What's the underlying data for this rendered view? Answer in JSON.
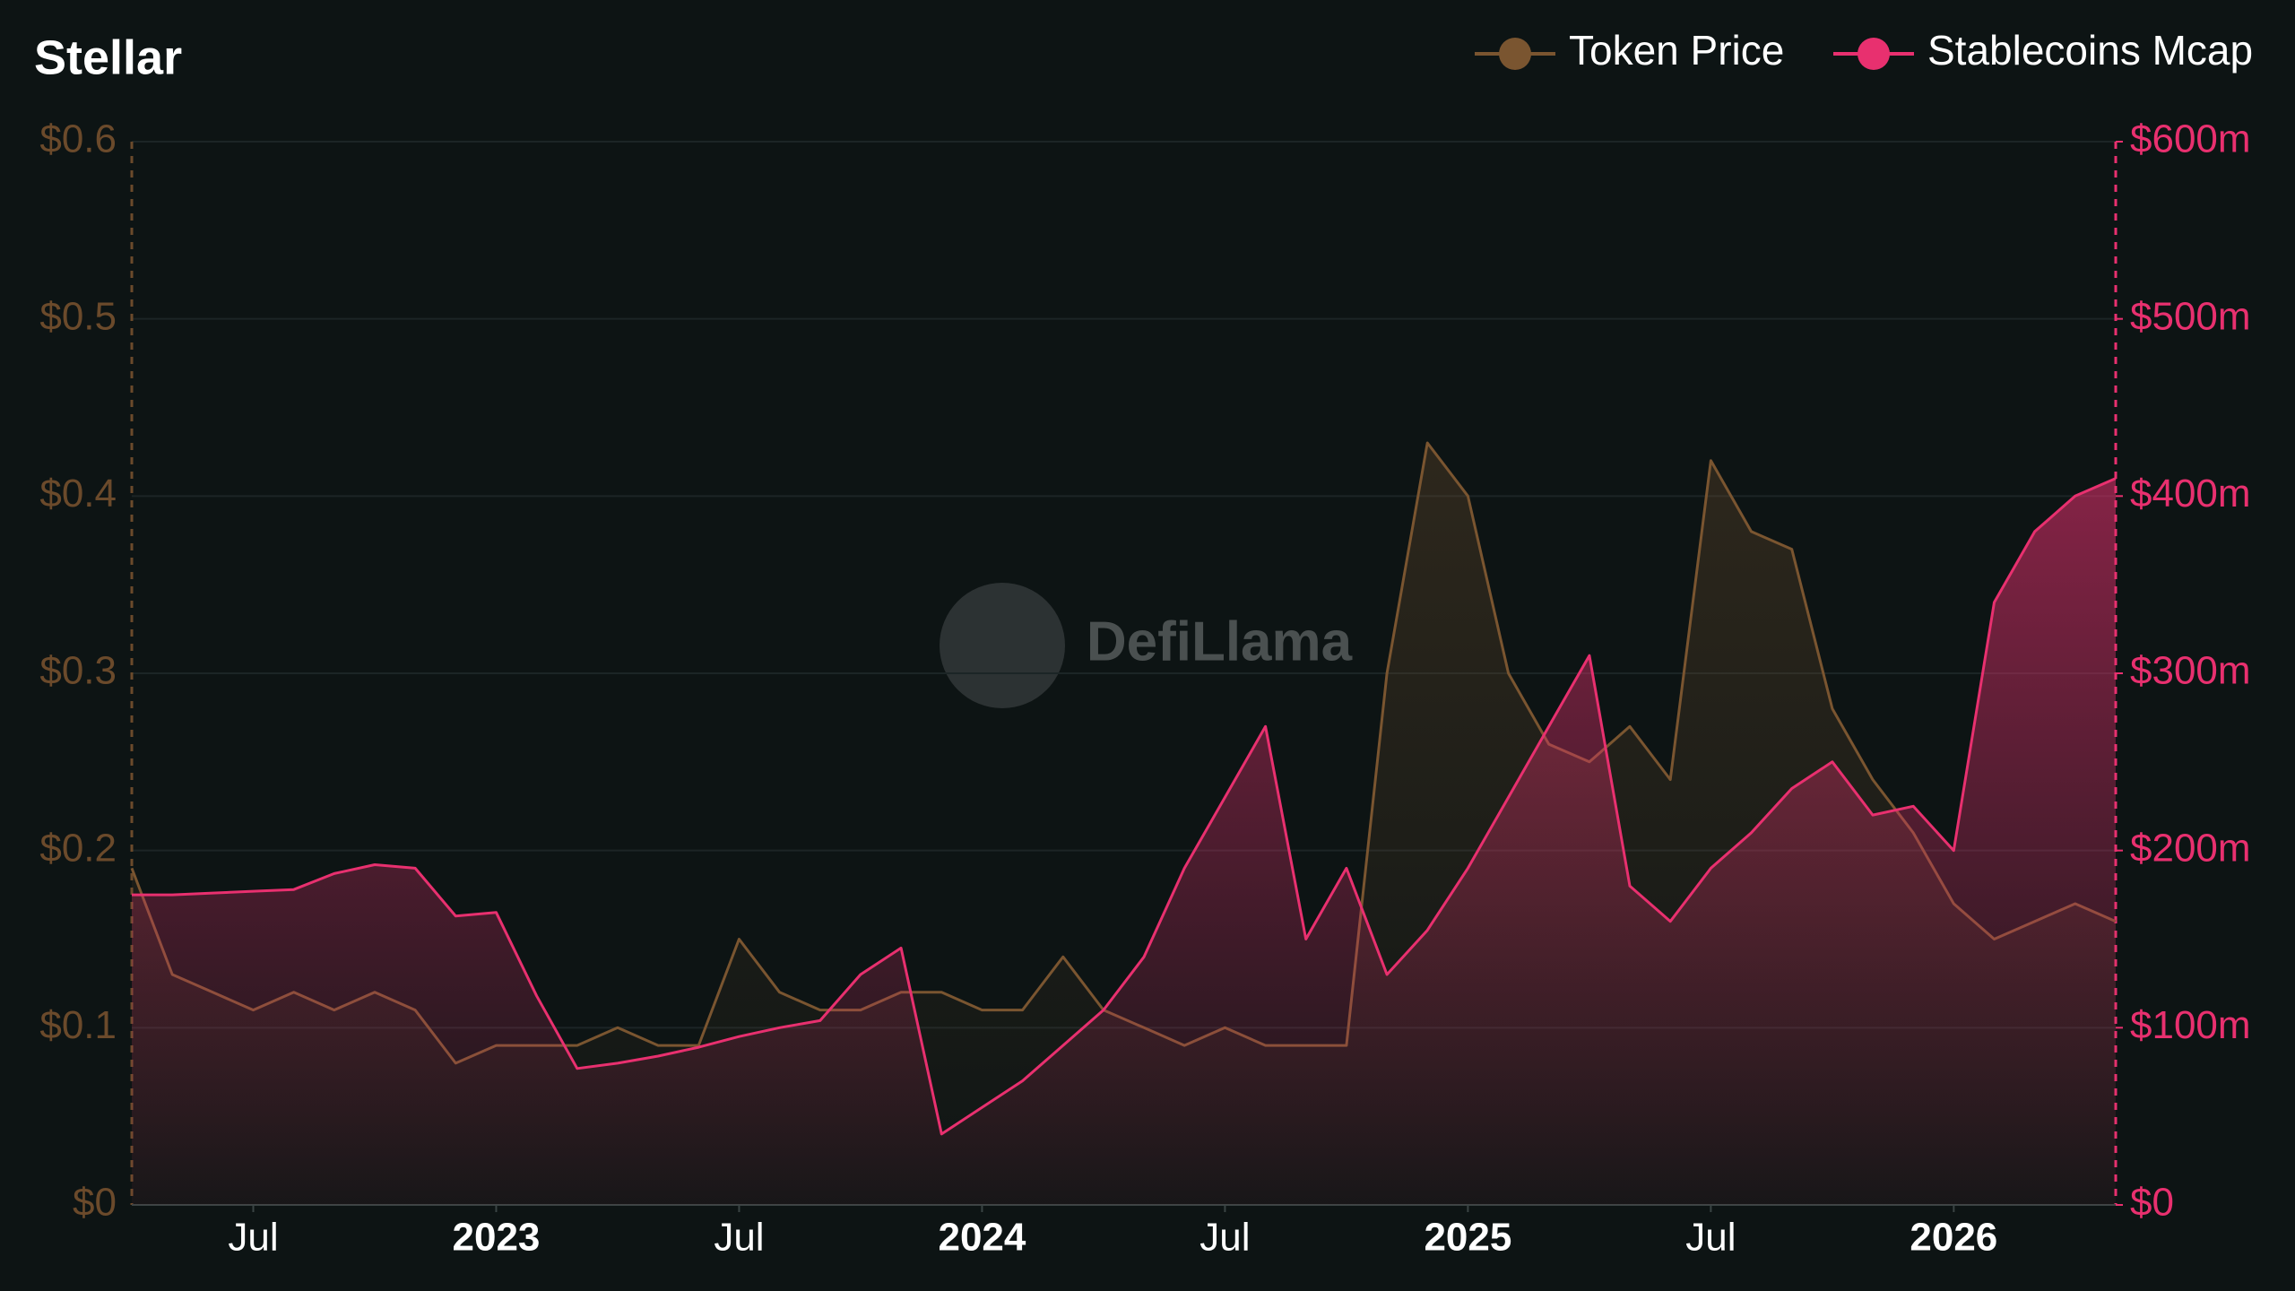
{
  "chart_data": {
    "type": "line",
    "title": "Stellar",
    "watermark": "DefiLlama",
    "x": [
      "2022-04",
      "2022-05",
      "2022-06",
      "2022-07",
      "2022-08",
      "2022-09",
      "2022-10",
      "2022-11",
      "2022-12",
      "2023-01",
      "2023-02",
      "2023-03",
      "2023-04",
      "2023-05",
      "2023-06",
      "2023-07",
      "2023-08",
      "2023-09",
      "2023-10",
      "2023-11",
      "2023-12",
      "2024-01",
      "2024-02",
      "2024-03",
      "2024-04",
      "2024-05",
      "2024-06",
      "2024-07",
      "2024-08",
      "2024-09",
      "2024-10",
      "2024-11",
      "2024-12",
      "2025-01",
      "2025-02",
      "2025-03",
      "2025-04",
      "2025-05",
      "2025-06",
      "2025-07",
      "2025-08",
      "2025-09",
      "2025-10",
      "2025-11",
      "2025-12",
      "2026-01",
      "2026-02",
      "2026-03",
      "2026-04",
      "2026-05"
    ],
    "series": [
      {
        "name": "Token Price",
        "color": "#7a5530",
        "axis": "y",
        "values": [
          0.19,
          0.13,
          0.12,
          0.11,
          0.12,
          0.11,
          0.12,
          0.11,
          0.08,
          0.09,
          0.09,
          0.09,
          0.1,
          0.09,
          0.09,
          0.15,
          0.12,
          0.11,
          0.11,
          0.12,
          0.12,
          0.11,
          0.11,
          0.14,
          0.11,
          0.1,
          0.09,
          0.1,
          0.09,
          0.09,
          0.09,
          0.3,
          0.43,
          0.4,
          0.3,
          0.26,
          0.25,
          0.27,
          0.24,
          0.42,
          0.38,
          0.37,
          0.28,
          0.24,
          0.21,
          0.17,
          0.15,
          0.16,
          0.17,
          0.16
        ]
      },
      {
        "name": "Stablecoins Mcap",
        "color": "#e8306f",
        "axis": "y2",
        "values": [
          175000000,
          175000000,
          176000000,
          177000000,
          178000000,
          187000000,
          192000000,
          190000000,
          163000000,
          165000000,
          118000000,
          77000000,
          80000000,
          84000000,
          89000000,
          95000000,
          100000000,
          104000000,
          130000000,
          145000000,
          40000000,
          55000000,
          70000000,
          90000000,
          110000000,
          140000000,
          190000000,
          230000000,
          270000000,
          150000000,
          190000000,
          130000000,
          155000000,
          190000000,
          230000000,
          270000000,
          310000000,
          180000000,
          160000000,
          190000000,
          210000000,
          235000000,
          250000000,
          220000000,
          225000000,
          200000000,
          340000000,
          380000000,
          400000000,
          410000000
        ]
      }
    ],
    "xlim": [
      "2022-04",
      "2026-05"
    ],
    "xticks": [
      {
        "value": "2022-07",
        "label": "Jul"
      },
      {
        "value": "2023-01",
        "label": "2023"
      },
      {
        "value": "2023-07",
        "label": "Jul"
      },
      {
        "value": "2024-01",
        "label": "2024"
      },
      {
        "value": "2024-07",
        "label": "Jul"
      },
      {
        "value": "2025-01",
        "label": "2025"
      },
      {
        "value": "2025-07",
        "label": "Jul"
      },
      {
        "value": "2026-01",
        "label": "2026"
      }
    ],
    "ylim": [
      0,
      0.6
    ],
    "yticks": [
      {
        "value": 0,
        "label": "$0"
      },
      {
        "value": 0.1,
        "label": "$0.1"
      },
      {
        "value": 0.2,
        "label": "$0.2"
      },
      {
        "value": 0.3,
        "label": "$0.3"
      },
      {
        "value": 0.4,
        "label": "$0.4"
      },
      {
        "value": 0.5,
        "label": "$0.5"
      },
      {
        "value": 0.6,
        "label": "$0.6"
      }
    ],
    "y2lim": [
      0,
      600000000
    ],
    "y2ticks": [
      {
        "value": 0,
        "label": "$0"
      },
      {
        "value": 100000000,
        "label": "$100m"
      },
      {
        "value": 200000000,
        "label": "$200m"
      },
      {
        "value": 300000000,
        "label": "$300m"
      },
      {
        "value": 400000000,
        "label": "$400m"
      },
      {
        "value": 500000000,
        "label": "$500m"
      },
      {
        "value": 600000000,
        "label": "$600m"
      }
    ],
    "grid": true
  }
}
